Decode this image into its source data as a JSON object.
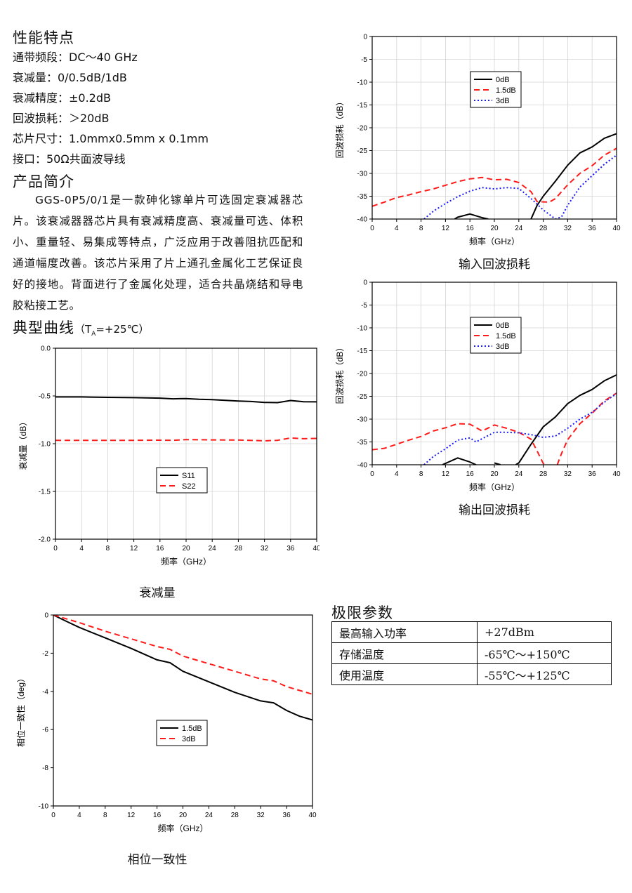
{
  "features": {
    "heading": "性能特点",
    "items": [
      "通带频段：DC～40 GHz",
      "衰减量：0/0.5dB/1dB",
      "衰减精度：±0.2dB",
      "回波损耗：＞20dB",
      "芯片尺寸：1.0mmx0.5mm x 0.1mm",
      "接口：50Ω共面波导线"
    ]
  },
  "intro": {
    "heading": "产品简介",
    "text": "GGS-0P5/0/1是一款砷化镓单片可选固定衰减器芯片。该衰减器器芯片具有衰减精度高、衰减量可选、体积小、重量轻、易集成等特点，广泛应用于改善阻抗匹配和通道幅度改善。该芯片采用了片上通孔金属化工艺保证良好的接地。背面进行了金属化处理，适合共晶烧结和导电胶粘接工艺。"
  },
  "curves": {
    "heading": "典型曲线",
    "cond_prefix": "（T",
    "cond_sub": "A",
    "cond_suffix": "=+25℃）"
  },
  "limits": {
    "heading": "极限参数",
    "rows": [
      [
        "最高输入功率",
        "+27dBm"
      ],
      [
        "存储温度",
        "-65℃～+150℃"
      ],
      [
        "使用温度",
        "-55℃～+125℃"
      ]
    ]
  },
  "chart_data": [
    {
      "id": "input-return-loss",
      "type": "line",
      "caption": "输入回波损耗",
      "xlabel": "频率（GHz）",
      "ylabel": "回波损耗（dB）",
      "xlim": [
        0,
        40
      ],
      "ylim": [
        -40,
        0
      ],
      "xticks": [
        0,
        4,
        8,
        12,
        16,
        20,
        24,
        28,
        32,
        36,
        40
      ],
      "yticks": [
        0,
        -5,
        -10,
        -15,
        -20,
        -25,
        -30,
        -35,
        -40
      ],
      "grid": true,
      "legend_position": "upper-middle",
      "series": [
        {
          "name": "0dB",
          "color": "#000000",
          "dash": "solid",
          "points": [
            [
              13.5,
              -40
            ],
            [
              14,
              -39.6
            ],
            [
              16,
              -38.9
            ],
            [
              18,
              -39.7
            ],
            [
              19,
              -40
            ],
            null,
            [
              26,
              -40
            ],
            [
              27,
              -37
            ],
            [
              28,
              -35
            ],
            [
              30,
              -31.7
            ],
            [
              32,
              -28.2
            ],
            [
              34,
              -25.5
            ],
            [
              36,
              -24.2
            ],
            [
              38,
              -22.3
            ],
            [
              40,
              -21.3
            ]
          ]
        },
        {
          "name": "1.5dB",
          "color": "#ff1a1a",
          "dash": "dash",
          "points": [
            [
              0,
              -37.2
            ],
            [
              2,
              -36.3
            ],
            [
              4,
              -35.3
            ],
            [
              6,
              -34.7
            ],
            [
              8,
              -34
            ],
            [
              10,
              -33.4
            ],
            [
              12,
              -32.6
            ],
            [
              14,
              -31.8
            ],
            [
              16,
              -31.2
            ],
            [
              18,
              -30.9
            ],
            [
              20,
              -31.4
            ],
            [
              22,
              -31.3
            ],
            [
              24,
              -32
            ],
            [
              26,
              -34
            ],
            [
              27,
              -36.2
            ],
            [
              29,
              -36.3
            ],
            [
              30,
              -35.5
            ],
            [
              32,
              -32.5
            ],
            [
              34,
              -30
            ],
            [
              36,
              -28.3
            ],
            [
              38,
              -26
            ],
            [
              40,
              -24.5
            ]
          ]
        },
        {
          "name": "3dB",
          "color": "#1a1aff",
          "dash": "dot",
          "points": [
            [
              8.5,
              -40
            ],
            [
              10,
              -38.3
            ],
            [
              12,
              -36.6
            ],
            [
              14,
              -35.1
            ],
            [
              16,
              -33.9
            ],
            [
              18,
              -33.1
            ],
            [
              20,
              -33.4
            ],
            [
              22,
              -33.1
            ],
            [
              24,
              -33.3
            ],
            [
              26,
              -35.5
            ],
            [
              28,
              -38
            ],
            [
              30,
              -40
            ],
            [
              31,
              -39.5
            ],
            [
              32,
              -37
            ],
            [
              34,
              -33
            ],
            [
              36,
              -30.5
            ],
            [
              38,
              -28
            ],
            [
              40,
              -26
            ]
          ]
        }
      ]
    },
    {
      "id": "output-return-loss",
      "type": "line",
      "caption": "输出回波损耗",
      "xlabel": "频率（GHz）",
      "ylabel": "回波损耗（dB）",
      "xlim": [
        0,
        40
      ],
      "ylim": [
        -40,
        0
      ],
      "xticks": [
        0,
        4,
        8,
        12,
        16,
        20,
        24,
        28,
        32,
        36,
        40
      ],
      "yticks": [
        0,
        -5,
        -10,
        -15,
        -20,
        -25,
        -30,
        -35,
        -40
      ],
      "grid": true,
      "legend_position": "upper-middle",
      "series": [
        {
          "name": "0dB",
          "color": "#000000",
          "dash": "solid",
          "points": [
            [
              11.5,
              -40
            ],
            [
              12,
              -39.7
            ],
            [
              14,
              -38.5
            ],
            [
              16,
              -39.4
            ],
            [
              17,
              -40
            ],
            null,
            [
              20,
              -39.6
            ],
            [
              21,
              -40
            ],
            null,
            [
              23.5,
              -40
            ],
            [
              24,
              -39.6
            ],
            [
              26,
              -35.5
            ],
            [
              28,
              -31.7
            ],
            [
              30,
              -29.5
            ],
            [
              32,
              -26.6
            ],
            [
              34,
              -24.8
            ],
            [
              36,
              -23.5
            ],
            [
              38,
              -21.6
            ],
            [
              40,
              -20.3
            ]
          ]
        },
        {
          "name": "1.5dB",
          "color": "#ff1a1a",
          "dash": "dash",
          "points": [
            [
              0,
              -36.7
            ],
            [
              2,
              -36.4
            ],
            [
              4,
              -35.5
            ],
            [
              6,
              -34.6
            ],
            [
              8,
              -33.8
            ],
            [
              10,
              -32.6
            ],
            [
              12,
              -31.9
            ],
            [
              14,
              -31
            ],
            [
              16,
              -31.1
            ],
            [
              18,
              -32.6
            ],
            [
              20,
              -31.3
            ],
            [
              22,
              -32
            ],
            [
              24,
              -32.9
            ],
            [
              26,
              -34.4
            ],
            [
              27,
              -37
            ],
            [
              28,
              -39.7
            ],
            [
              28.5,
              -40
            ],
            null,
            [
              30.3,
              -40
            ],
            [
              31,
              -37.5
            ],
            [
              32,
              -34.5
            ],
            [
              34,
              -31
            ],
            [
              36,
              -28.7
            ],
            [
              38,
              -26
            ],
            [
              40,
              -24.3
            ]
          ]
        },
        {
          "name": "3dB",
          "color": "#1a1aff",
          "dash": "dot",
          "points": [
            [
              8.5,
              -40
            ],
            [
              10,
              -38.2
            ],
            [
              12,
              -36.5
            ],
            [
              14,
              -34.6
            ],
            [
              16,
              -34.1
            ],
            [
              17,
              -35
            ],
            [
              18,
              -34.3
            ],
            [
              20,
              -32.9
            ],
            [
              22,
              -32.9
            ],
            [
              24,
              -33
            ],
            [
              26,
              -33.4
            ],
            [
              28,
              -34
            ],
            [
              30,
              -33.7
            ],
            [
              32,
              -32
            ],
            [
              34,
              -30
            ],
            [
              36,
              -28.5
            ],
            [
              38,
              -26.3
            ],
            [
              40,
              -24.4
            ]
          ]
        }
      ]
    },
    {
      "id": "attenuation",
      "type": "line",
      "caption": "衰减量",
      "xlabel": "频率（GHz）",
      "ylabel": "衰减量（dB）",
      "xlim": [
        0,
        40
      ],
      "ylim": [
        -2.0,
        0.0
      ],
      "xticks": [
        0,
        4,
        8,
        12,
        16,
        20,
        24,
        28,
        32,
        36,
        40
      ],
      "yticks": [
        0.0,
        -0.5,
        -1.0,
        -1.5,
        -2.0
      ],
      "ytick_labels": [
        "0.0",
        "-0.5",
        "-1.0",
        "-1.5",
        "-2.0"
      ],
      "grid": true,
      "legend_position": "center",
      "series": [
        {
          "name": "S11",
          "color": "#000000",
          "dash": "solid",
          "points": [
            [
              0,
              -0.51
            ],
            [
              4,
              -0.51
            ],
            [
              8,
              -0.515
            ],
            [
              12,
              -0.518
            ],
            [
              16,
              -0.523
            ],
            [
              18,
              -0.53
            ],
            [
              20,
              -0.527
            ],
            [
              22,
              -0.535
            ],
            [
              24,
              -0.538
            ],
            [
              28,
              -0.553
            ],
            [
              30,
              -0.558
            ],
            [
              32,
              -0.568
            ],
            [
              34,
              -0.57
            ],
            [
              36,
              -0.548
            ],
            [
              38,
              -0.56
            ],
            [
              40,
              -0.562
            ]
          ]
        },
        {
          "name": "S22",
          "color": "#ff1a1a",
          "dash": "dash",
          "points": [
            [
              0,
              -0.965
            ],
            [
              8,
              -0.965
            ],
            [
              12,
              -0.965
            ],
            [
              16,
              -0.963
            ],
            [
              18,
              -0.965
            ],
            [
              20,
              -0.957
            ],
            [
              24,
              -0.96
            ],
            [
              28,
              -0.962
            ],
            [
              32,
              -0.97
            ],
            [
              34,
              -0.965
            ],
            [
              36,
              -0.94
            ],
            [
              38,
              -0.948
            ],
            [
              40,
              -0.945
            ]
          ]
        }
      ]
    },
    {
      "id": "phase-consistency",
      "type": "line",
      "caption": "相位一致性",
      "xlabel": "频率（GHz）",
      "ylabel": "相位一致性（deg）",
      "xlim": [
        0,
        40
      ],
      "ylim": [
        -10,
        0
      ],
      "xticks": [
        0,
        4,
        8,
        12,
        16,
        20,
        24,
        28,
        32,
        36,
        40
      ],
      "yticks": [
        0,
        -2,
        -4,
        -6,
        -8,
        -10
      ],
      "grid": false,
      "legend_position": "center",
      "series": [
        {
          "name": "1.5dB",
          "color": "#000000",
          "dash": "solid",
          "points": [
            [
              0,
              0
            ],
            [
              2,
              -0.33
            ],
            [
              4,
              -0.65
            ],
            [
              8,
              -1.2
            ],
            [
              12,
              -1.75
            ],
            [
              16,
              -2.35
            ],
            [
              18,
              -2.5
            ],
            [
              20,
              -2.95
            ],
            [
              24,
              -3.5
            ],
            [
              28,
              -4.05
            ],
            [
              32,
              -4.5
            ],
            [
              34,
              -4.6
            ],
            [
              36,
              -5.0
            ],
            [
              38,
              -5.3
            ],
            [
              40,
              -5.5
            ]
          ]
        },
        {
          "name": "3dB",
          "color": "#ff1a1a",
          "dash": "dash",
          "points": [
            [
              0,
              0
            ],
            [
              4,
              -0.4
            ],
            [
              8,
              -0.85
            ],
            [
              12,
              -1.25
            ],
            [
              16,
              -1.65
            ],
            [
              18,
              -1.8
            ],
            [
              20,
              -2.15
            ],
            [
              24,
              -2.55
            ],
            [
              28,
              -2.95
            ],
            [
              32,
              -3.35
            ],
            [
              34,
              -3.45
            ],
            [
              36,
              -3.75
            ],
            [
              40,
              -4.15
            ]
          ]
        }
      ]
    }
  ]
}
